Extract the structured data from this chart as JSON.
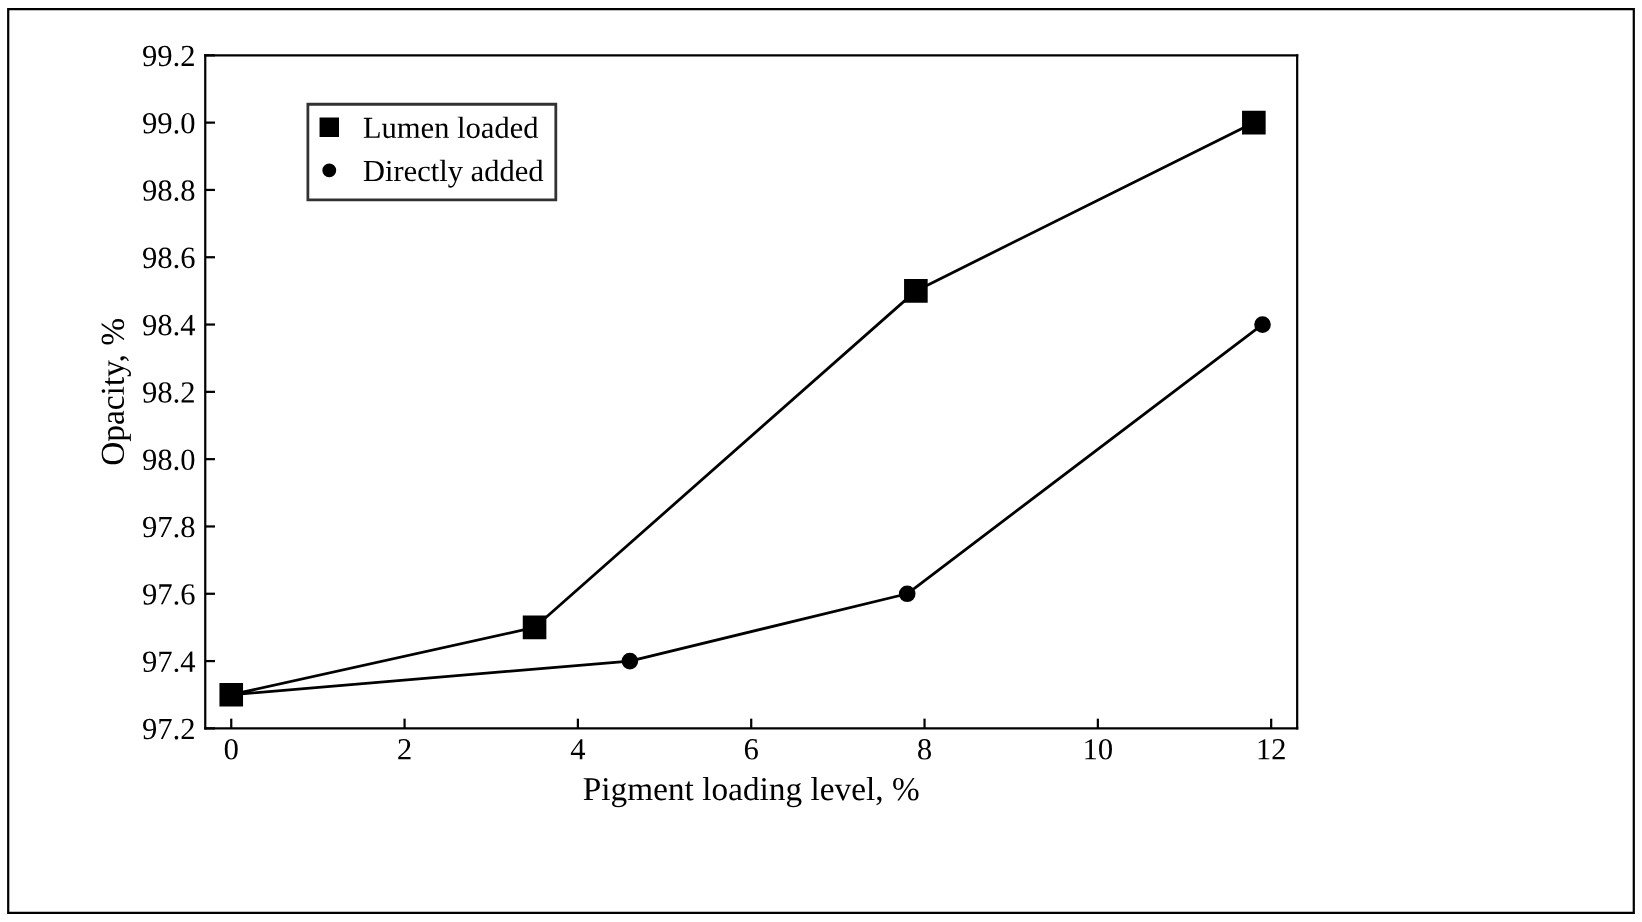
{
  "chart_data": {
    "type": "line",
    "xlabel": "Pigment loading level, %",
    "ylabel": "Opacity, %",
    "xlim": [
      -0.3,
      12.3
    ],
    "xticks": [
      0,
      2,
      4,
      6,
      8,
      10,
      12
    ],
    "ylim": [
      97.2,
      99.2
    ],
    "yticks": [
      {
        "value": 97.2,
        "label": "97.2"
      },
      {
        "value": 97.4,
        "label": "97.4"
      },
      {
        "value": 97.6,
        "label": "97.6"
      },
      {
        "value": 97.8,
        "label": "97.8"
      },
      {
        "value": 98.0,
        "label": "98.0"
      },
      {
        "value": 98.2,
        "label": "98.2"
      },
      {
        "value": 98.4,
        "label": "98.4"
      },
      {
        "value": 98.6,
        "label": "98.6"
      },
      {
        "value": 98.8,
        "label": "98.8"
      },
      {
        "value": 99.0,
        "label": "99.0"
      },
      {
        "value": 99.2,
        "label": "99.2"
      }
    ],
    "grid": false,
    "legend": "top left",
    "line_style": "solid",
    "series": [
      {
        "name": "Lumen loaded",
        "color": "#000000",
        "marker": "square",
        "x": [
          0,
          3.5,
          7.9,
          11.8
        ],
        "values": [
          97.3,
          97.5,
          98.5,
          99.0
        ]
      },
      {
        "name": "Directly added",
        "color": "#000000",
        "marker": "circle",
        "x": [
          0,
          4.6,
          7.8,
          11.9
        ],
        "values": [
          97.3,
          97.4,
          97.6,
          98.4
        ]
      }
    ]
  }
}
